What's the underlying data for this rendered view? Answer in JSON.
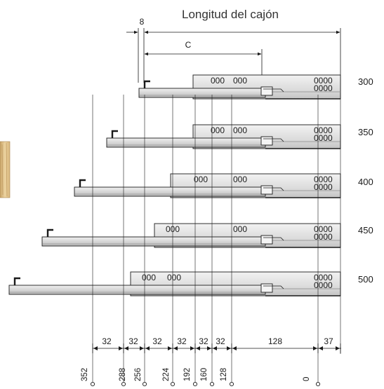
{
  "title": "Longitud del cajón",
  "dim_8": "8",
  "dim_c": "C",
  "drawer_sizes": [
    "300",
    "350",
    "400",
    "450",
    "500"
  ],
  "bottom_spacings": [
    "32",
    "32",
    "32",
    "32",
    "32",
    "32",
    "128",
    "37"
  ],
  "bottom_positions": [
    "352",
    "288",
    "256",
    "224",
    "192",
    "160",
    "128",
    "0"
  ],
  "hole_labels": [
    {
      "left": "000",
      "right": "000",
      "end_top": "0000",
      "end_bottom": "0000"
    },
    {
      "left": "000",
      "right": "000",
      "end_top": "0000",
      "end_bottom": "0000"
    },
    {
      "left": "000",
      "right": "000",
      "end_top": "0000",
      "end_bottom": "0000"
    },
    {
      "left": "000",
      "right": "000",
      "end_top": "0000",
      "end_bottom": "0000"
    },
    {
      "left": "000",
      "right": "000",
      "end_top": "0000",
      "end_bottom": "0000"
    }
  ],
  "colors": {
    "line": "#1a1a1a",
    "rail_fill": "#e4e4e4",
    "rail_dark": "#bdbdbd",
    "bar_fill": "#d6d6d6",
    "wood_light": "#ecd3a0",
    "wood_dark": "#c9a467"
  }
}
